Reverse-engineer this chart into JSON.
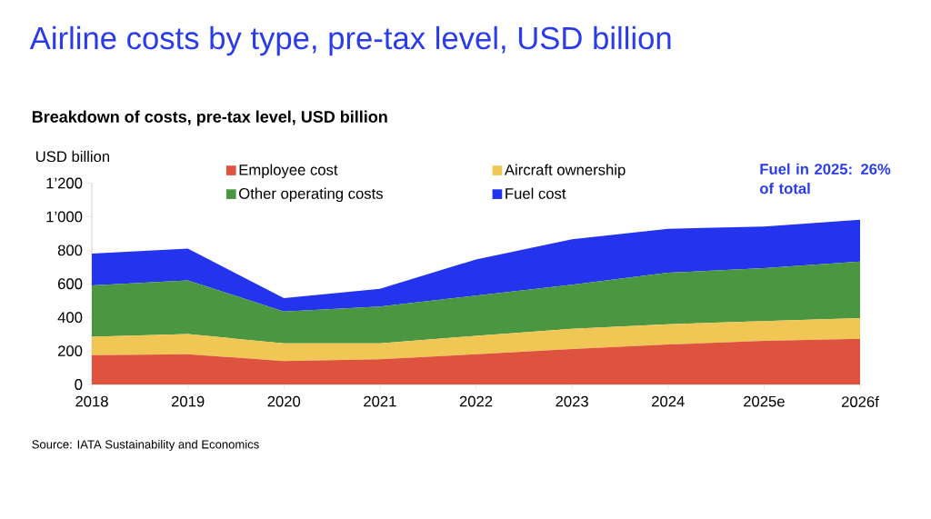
{
  "chart_data": {
    "type": "area",
    "title": "Airline costs by type, pre-tax level, USD billion",
    "subtitle": "Breakdown of costs, pre-tax level, USD billion",
    "ylabel": "USD billion",
    "categories": [
      "2018",
      "2019",
      "2020",
      "2021",
      "2022",
      "2023",
      "2024",
      "2025e",
      "2026f"
    ],
    "stacked": true,
    "series": [
      {
        "name": "Employee cost",
        "color": "#de533e",
        "values": [
          175,
          180,
          140,
          150,
          180,
          211,
          238,
          260,
          272
        ]
      },
      {
        "name": "Aircraft ownership",
        "color": "#f0c755",
        "values": [
          110,
          120,
          105,
          95,
          110,
          121,
          121,
          118,
          123
        ]
      },
      {
        "name": "Other operating costs",
        "color": "#4b9641",
        "values": [
          305,
          320,
          190,
          220,
          240,
          262,
          307,
          315,
          338
        ]
      },
      {
        "name": "Fuel cost",
        "color": "#2433ee",
        "values": [
          190,
          190,
          80,
          105,
          215,
          271,
          262,
          248,
          249
        ]
      }
    ],
    "ylim": [
      0,
      1200
    ],
    "yticks": [
      0,
      200,
      400,
      600,
      800,
      {
        "value": 1000,
        "label": "1’000"
      },
      {
        "value": 1200,
        "label": "1’200"
      }
    ],
    "legend": "top",
    "annotations": [
      "Fuel in 2025: 26% of total",
      "Source: IATA Sustainability and Economics"
    ]
  }
}
